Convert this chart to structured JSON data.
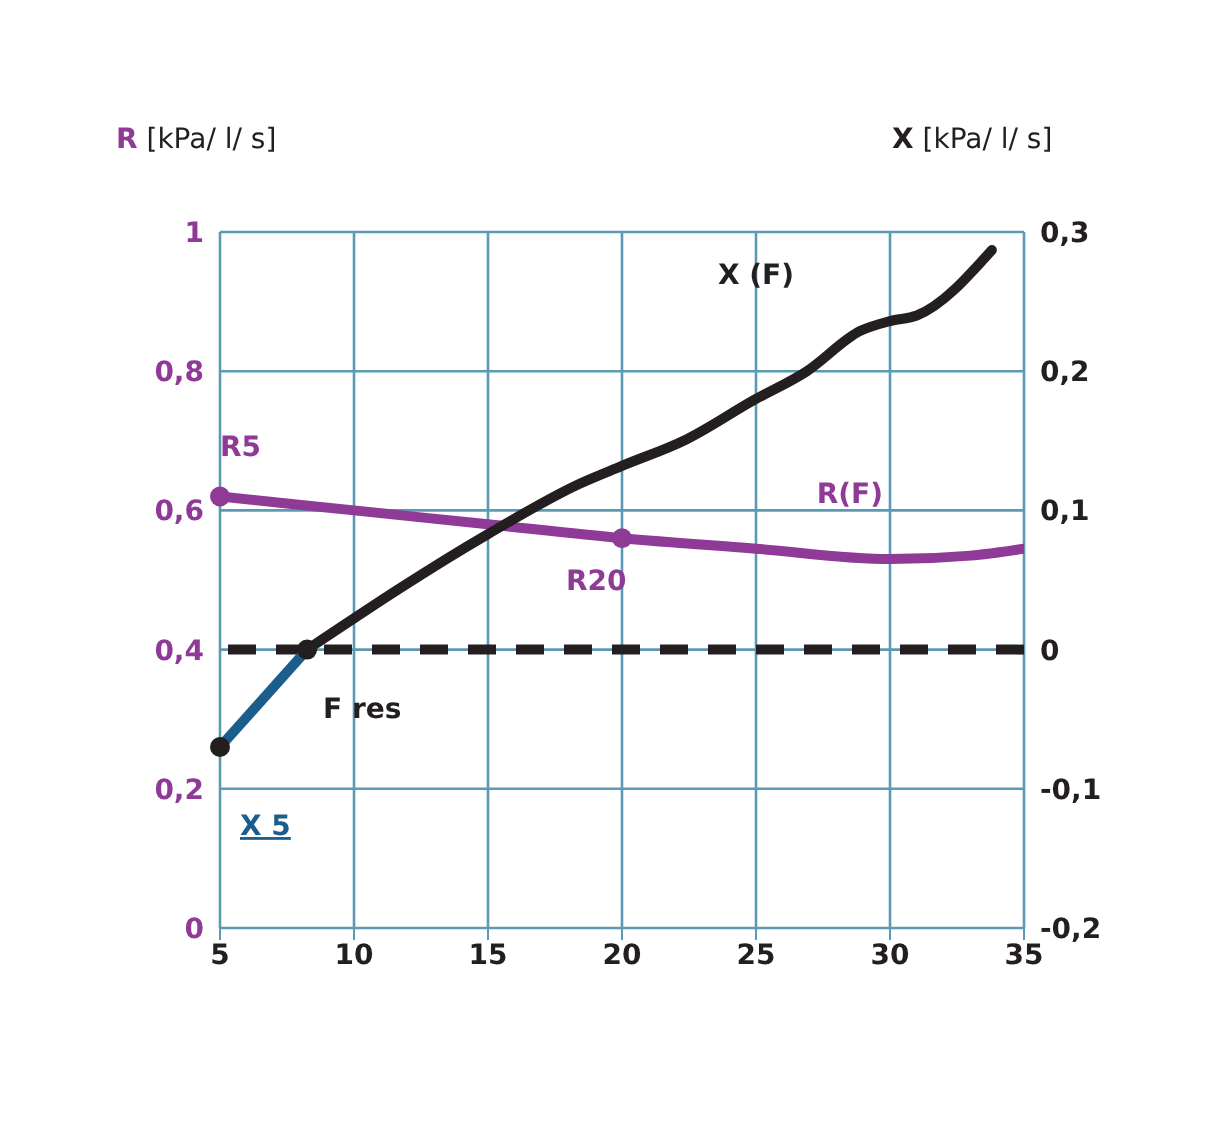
{
  "chart_data": {
    "type": "line",
    "xlabel": null,
    "ylabel": "R [kPa/ l/ s]",
    "y2label": "X [kPa/ l/ s]",
    "x": [
      5,
      10,
      15,
      20,
      25,
      30,
      33,
      35
    ],
    "series": [
      {
        "name": "R(F)",
        "color": "#8e3a96",
        "values": [
          0.62,
          0.6,
          0.58,
          0.56,
          0.545,
          0.53,
          0.535,
          0.545
        ]
      },
      {
        "name": "X (F)",
        "color": "#231f20",
        "axis": "y2",
        "x": [
          8.25,
          15,
          18.4,
          20,
          22.4,
          24.9,
          26.9,
          28.9,
          30,
          31,
          33.8
        ],
        "values": [
          0,
          0.083,
          0.119,
          0.132,
          0.151,
          0.179,
          0.2,
          0.229,
          0.236,
          0.24,
          0.287
        ]
      },
      {
        "color": "#1b5e8c",
        "axis": "y2",
        "x": [
          5,
          8.25
        ],
        "values": [
          -0.07,
          0
        ]
      }
    ],
    "xlim": [
      5,
      35
    ],
    "xticks": [
      5,
      10,
      15,
      20,
      25,
      30,
      35
    ],
    "ylim": [
      0,
      1
    ],
    "yticks": [
      0,
      {
        "value": 0.2,
        "label": "0,2"
      },
      {
        "value": 0.4,
        "label": "0,4"
      },
      {
        "value": 0.6,
        "label": "0,6"
      },
      {
        "value": 0.8,
        "label": "0,8"
      },
      1
    ],
    "y2lim": [
      -0.2,
      0.3
    ],
    "y2ticks": [
      {
        "value": -0.2,
        "label": "-0,2"
      },
      {
        "value": -0.1,
        "label": "-0,1"
      },
      0,
      {
        "value": 0.1,
        "label": "0,1"
      },
      {
        "value": 0.2,
        "label": "0,2"
      },
      {
        "value": 0.3,
        "label": "0,3"
      }
    ],
    "ref_lines": [
      {
        "axis": "y2",
        "value": 0,
        "color": "#231f20",
        "line_style": "dashed"
      }
    ],
    "annotations": [
      {
        "text": "R5",
        "x": 5,
        "y": 0.62
      },
      {
        "text": "R20",
        "x": 20,
        "y": 0.56
      },
      {
        "text": "F res",
        "x": 8.25,
        "y": 0.4
      },
      {
        "text": "X 5",
        "x": 5,
        "y": 0.26
      }
    ],
    "grid": true,
    "line_style": "solid"
  }
}
